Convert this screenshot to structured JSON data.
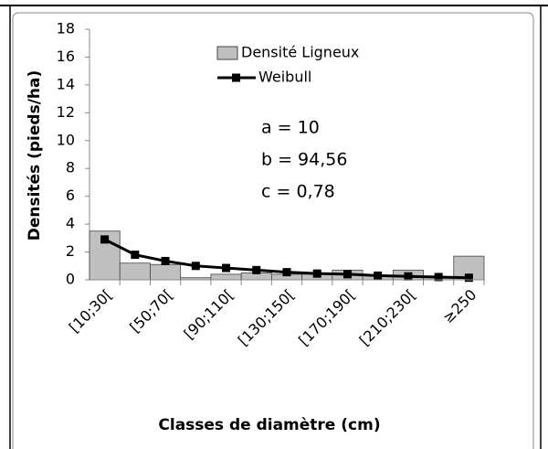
{
  "chart_data": {
    "type": "bar",
    "x_label": "Classes de diamètre (cm)",
    "y_label": "Densités (pieds/ha)",
    "categories": [
      "[10;30[",
      null,
      "[50;70[",
      null,
      "[90;110[",
      null,
      "[130;150[",
      null,
      "[170;190[",
      null,
      "[210;230[",
      null,
      "≥250"
    ],
    "series": [
      {
        "name": "Densité Ligneux",
        "type": "bar",
        "color": "#c0c0c0",
        "values": [
          3.5,
          1.2,
          1.1,
          0.15,
          0.4,
          0.5,
          0.4,
          0.4,
          0.7,
          0.3,
          0.7,
          0.2,
          1.7
        ]
      },
      {
        "name": "Weibull",
        "type": "line",
        "color": "#000000",
        "values": [
          2.9,
          1.8,
          1.35,
          1.0,
          0.85,
          0.7,
          0.55,
          0.45,
          0.4,
          0.3,
          0.25,
          0.2,
          0.15
        ]
      }
    ],
    "annotations": [
      "a = 10",
      "b = 94,56",
      "c = 0,78"
    ],
    "ylim": [
      0,
      18
    ],
    "yticks": [
      0,
      2,
      4,
      6,
      8,
      10,
      12,
      14,
      16,
      18
    ],
    "grid": false,
    "legend": "top"
  }
}
